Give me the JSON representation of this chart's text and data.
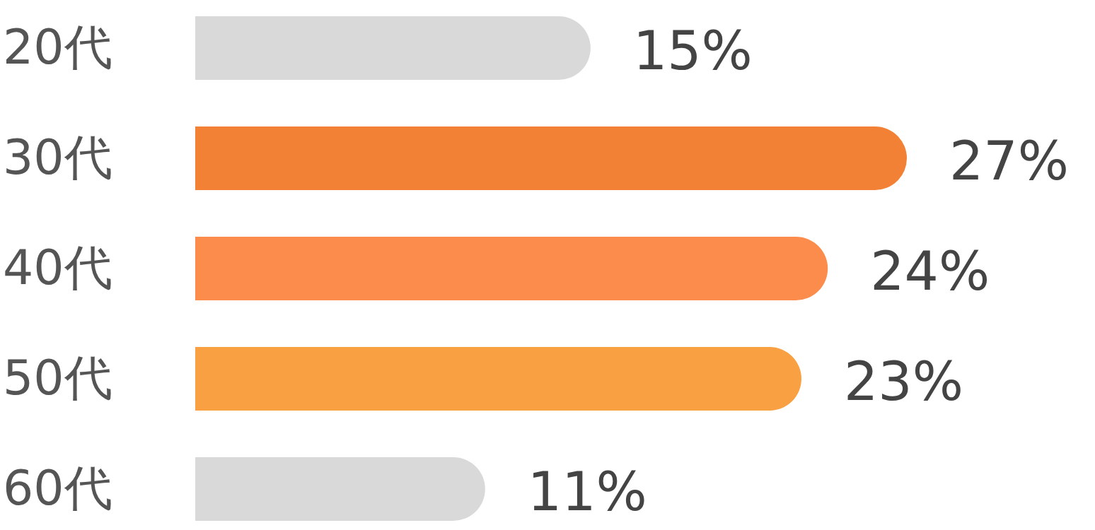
{
  "chart_data": {
    "type": "bar",
    "orientation": "horizontal",
    "categories": [
      "20代",
      "30代",
      "40代",
      "50代",
      "60代"
    ],
    "values": [
      15,
      27,
      24,
      23,
      11
    ],
    "colors": [
      "#d9d9d9",
      "#f28035",
      "#fc8c4c",
      "#f9a042",
      "#d9d9d9"
    ],
    "value_labels": [
      "15%",
      "27%",
      "24%",
      "23%",
      "11%"
    ]
  }
}
